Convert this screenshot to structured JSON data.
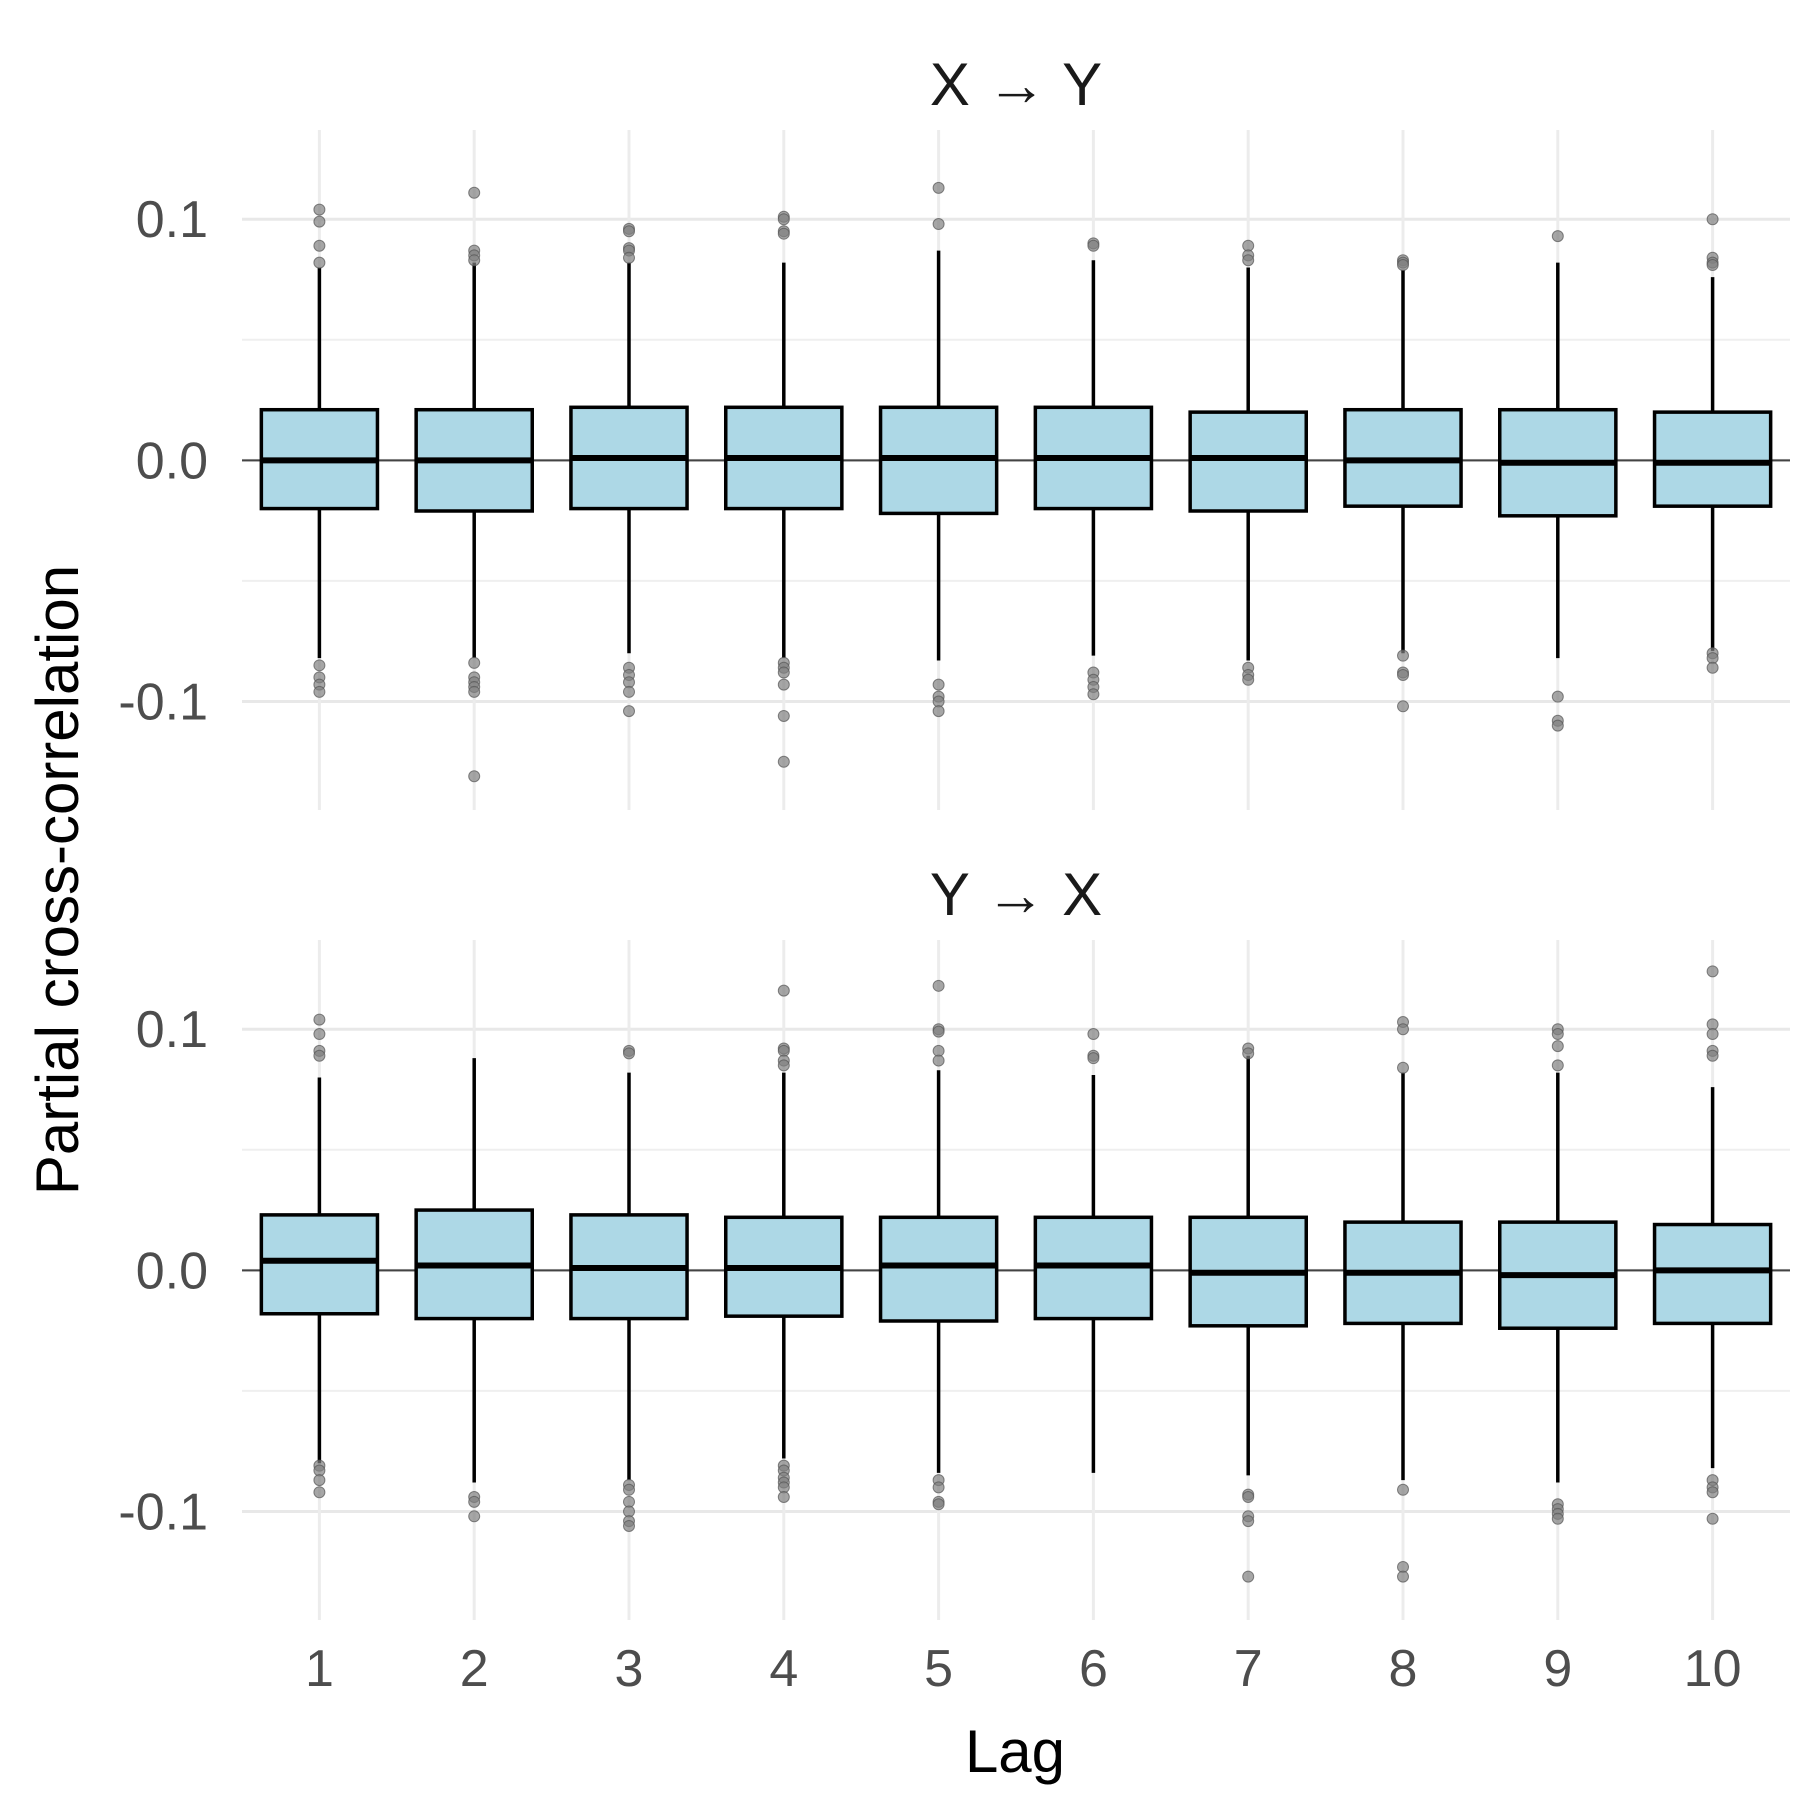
{
  "chart_data": {
    "type": "boxplot",
    "xlabel": "Lag",
    "ylabel": "Partial cross-correlation",
    "categories": [
      "1",
      "2",
      "3",
      "4",
      "5",
      "6",
      "7",
      "8",
      "9",
      "10"
    ],
    "ylim": [
      -0.145,
      0.137
    ],
    "yticks": [
      -0.1,
      0.0,
      0.1
    ],
    "ytick_labels": [
      "-0.1",
      "0.0",
      "0.1"
    ],
    "grid": true,
    "reference_line_y": 0.0,
    "box_fill": "#add8e6",
    "box_stroke": "#000000",
    "outlier_color": "#808080",
    "panels": [
      {
        "title": "X → Y",
        "boxes": [
          {
            "lag": "1",
            "q1": -0.02,
            "median": 0.0,
            "q3": 0.021,
            "whisker_low": -0.082,
            "whisker_high": 0.08,
            "outliers": [
              0.104,
              0.099,
              0.089,
              0.082,
              -0.085,
              -0.09,
              -0.093,
              -0.096
            ]
          },
          {
            "lag": "2",
            "q1": -0.021,
            "median": -0.0,
            "q3": 0.021,
            "whisker_low": -0.082,
            "whisker_high": 0.082,
            "outliers": [
              0.111,
              0.087,
              0.085,
              0.083,
              -0.084,
              -0.09,
              -0.092,
              -0.094,
              -0.096,
              -0.131
            ]
          },
          {
            "lag": "3",
            "q1": -0.02,
            "median": 0.001,
            "q3": 0.022,
            "whisker_low": -0.08,
            "whisker_high": 0.082,
            "outliers": [
              0.096,
              0.095,
              0.088,
              0.087,
              0.084,
              -0.086,
              -0.089,
              -0.092,
              -0.096,
              -0.104
            ]
          },
          {
            "lag": "4",
            "q1": -0.02,
            "median": 0.001,
            "q3": 0.022,
            "whisker_low": -0.082,
            "whisker_high": 0.082,
            "outliers": [
              0.101,
              0.1,
              0.095,
              0.094,
              -0.084,
              -0.086,
              -0.088,
              -0.093,
              -0.106,
              -0.125
            ]
          },
          {
            "lag": "5",
            "q1": -0.022,
            "median": 0.001,
            "q3": 0.022,
            "whisker_low": -0.083,
            "whisker_high": 0.087,
            "outliers": [
              0.113,
              0.098,
              -0.093,
              -0.098,
              -0.1,
              -0.104
            ]
          },
          {
            "lag": "6",
            "q1": -0.02,
            "median": 0.001,
            "q3": 0.022,
            "whisker_low": -0.081,
            "whisker_high": 0.083,
            "outliers": [
              0.09,
              0.089,
              -0.088,
              -0.091,
              -0.094,
              -0.097
            ]
          },
          {
            "lag": "7",
            "q1": -0.021,
            "median": 0.001,
            "q3": 0.02,
            "whisker_low": -0.083,
            "whisker_high": 0.08,
            "outliers": [
              0.089,
              0.085,
              0.083,
              -0.086,
              -0.089,
              -0.091
            ]
          },
          {
            "lag": "8",
            "q1": -0.019,
            "median": -0.0,
            "q3": 0.021,
            "whisker_low": -0.08,
            "whisker_high": 0.079,
            "outliers": [
              0.083,
              0.082,
              0.081,
              -0.081,
              -0.088,
              -0.089,
              -0.102
            ]
          },
          {
            "lag": "9",
            "q1": -0.023,
            "median": -0.001,
            "q3": 0.021,
            "whisker_low": -0.082,
            "whisker_high": 0.082,
            "outliers": [
              0.093,
              -0.098,
              -0.108,
              -0.11
            ]
          },
          {
            "lag": "10",
            "q1": -0.019,
            "median": -0.001,
            "q3": 0.02,
            "whisker_low": -0.079,
            "whisker_high": 0.076,
            "outliers": [
              0.1,
              0.084,
              0.082,
              0.081,
              -0.08,
              -0.082,
              -0.086
            ]
          }
        ]
      },
      {
        "title": "Y → X",
        "boxes": [
          {
            "lag": "1",
            "q1": -0.018,
            "median": 0.004,
            "q3": 0.023,
            "whisker_low": -0.08,
            "whisker_high": 0.08,
            "outliers": [
              0.104,
              0.098,
              0.091,
              0.089,
              -0.081,
              -0.083,
              -0.087,
              -0.092
            ]
          },
          {
            "lag": "2",
            "q1": -0.02,
            "median": 0.002,
            "q3": 0.025,
            "whisker_low": -0.088,
            "whisker_high": 0.088,
            "outliers": [
              -0.094,
              -0.096,
              -0.102
            ]
          },
          {
            "lag": "3",
            "q1": -0.02,
            "median": 0.001,
            "q3": 0.023,
            "whisker_low": -0.087,
            "whisker_high": 0.082,
            "outliers": [
              0.091,
              0.09,
              -0.089,
              -0.091,
              -0.096,
              -0.1,
              -0.104,
              -0.106
            ]
          },
          {
            "lag": "4",
            "q1": -0.019,
            "median": 0.001,
            "q3": 0.022,
            "whisker_low": -0.078,
            "whisker_high": 0.082,
            "outliers": [
              0.116,
              0.092,
              0.091,
              0.087,
              0.085,
              -0.081,
              -0.083,
              -0.086,
              -0.088,
              -0.09,
              -0.094
            ]
          },
          {
            "lag": "5",
            "q1": -0.021,
            "median": 0.002,
            "q3": 0.022,
            "whisker_low": -0.084,
            "whisker_high": 0.083,
            "outliers": [
              0.118,
              0.1,
              0.099,
              0.091,
              0.087,
              -0.087,
              -0.09,
              -0.096,
              -0.097
            ]
          },
          {
            "lag": "6",
            "q1": -0.02,
            "median": 0.002,
            "q3": 0.022,
            "whisker_low": -0.084,
            "whisker_high": 0.081,
            "outliers": [
              0.098,
              0.089,
              0.088
            ]
          },
          {
            "lag": "7",
            "q1": -0.023,
            "median": -0.001,
            "q3": 0.022,
            "whisker_low": -0.085,
            "whisker_high": 0.089,
            "outliers": [
              0.092,
              0.09,
              -0.093,
              -0.094,
              -0.102,
              -0.104,
              -0.127
            ]
          },
          {
            "lag": "8",
            "q1": -0.022,
            "median": -0.001,
            "q3": 0.02,
            "whisker_low": -0.087,
            "whisker_high": 0.082,
            "outliers": [
              0.103,
              0.1,
              0.084,
              -0.091,
              -0.123,
              -0.127
            ]
          },
          {
            "lag": "9",
            "q1": -0.024,
            "median": -0.002,
            "q3": 0.02,
            "whisker_low": -0.088,
            "whisker_high": 0.082,
            "outliers": [
              0.1,
              0.098,
              0.093,
              0.085,
              -0.097,
              -0.099,
              -0.101,
              -0.103
            ]
          },
          {
            "lag": "10",
            "q1": -0.022,
            "median": 0.0,
            "q3": 0.019,
            "whisker_low": -0.082,
            "whisker_high": 0.076,
            "outliers": [
              0.124,
              0.102,
              0.098,
              0.091,
              0.089,
              -0.087,
              -0.09,
              -0.092,
              -0.103
            ]
          }
        ]
      }
    ]
  }
}
